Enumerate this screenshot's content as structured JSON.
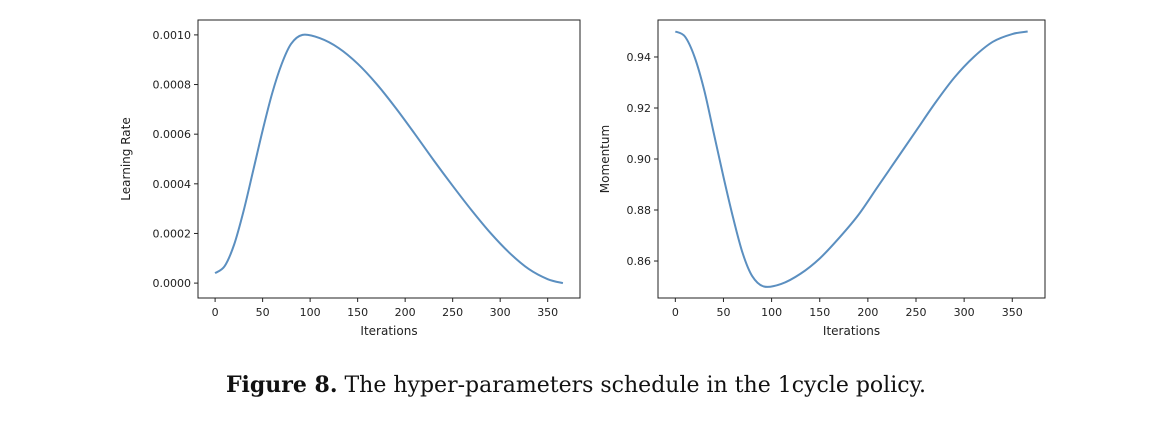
{
  "chart_data": [
    {
      "type": "line",
      "xlabel": "Iterations",
      "ylabel": "Learning Rate",
      "xlim": [
        -18,
        384
      ],
      "ylim": [
        -6e-05,
        0.00106
      ],
      "xticks": [
        0,
        50,
        100,
        150,
        200,
        250,
        300,
        350
      ],
      "yticks": [
        0.0,
        0.0002,
        0.0004,
        0.0006,
        0.0008,
        0.001
      ],
      "ytick_labels": [
        "0.0000",
        "0.0002",
        "0.0004",
        "0.0006",
        "0.0008",
        "0.0010"
      ],
      "x": [
        0,
        10,
        20,
        30,
        40,
        50,
        60,
        70,
        80,
        92,
        110,
        130,
        150,
        170,
        190,
        210,
        230,
        250,
        270,
        290,
        310,
        330,
        350,
        366
      ],
      "y": [
        4e-05,
        6.8e-05,
        0.000155,
        0.000291,
        0.000452,
        0.000615,
        0.000764,
        0.000882,
        0.000964,
        0.001,
        0.000987,
        0.000947,
        0.000884,
        0.000802,
        0.000706,
        0.000602,
        0.000495,
        0.000392,
        0.000293,
        0.000201,
        0.000121,
        5.7e-05,
        1.6e-05,
        0.0
      ],
      "color": "#5b8fc0",
      "grid": false
    },
    {
      "type": "line",
      "xlabel": "Iterations",
      "ylabel": "Momentum",
      "xlim": [
        -18,
        384
      ],
      "ylim": [
        0.8455,
        0.9545
      ],
      "xticks": [
        0,
        50,
        100,
        150,
        200,
        250,
        300,
        350
      ],
      "yticks": [
        0.86,
        0.88,
        0.9,
        0.92,
        0.94
      ],
      "ytick_labels": [
        "0.86",
        "0.88",
        "0.90",
        "0.92",
        "0.94"
      ],
      "x": [
        0,
        10,
        20,
        30,
        40,
        50,
        60,
        70,
        80,
        92,
        110,
        130,
        150,
        170,
        190,
        210,
        230,
        250,
        270,
        290,
        310,
        330,
        350,
        366
      ],
      "y": [
        0.95,
        0.948,
        0.94,
        0.927,
        0.91,
        0.893,
        0.877,
        0.863,
        0.854,
        0.85,
        0.851,
        0.855,
        0.861,
        0.869,
        0.878,
        0.889,
        0.9,
        0.911,
        0.922,
        0.932,
        0.94,
        0.946,
        0.949,
        0.95
      ],
      "color": "#5b8fc0",
      "grid": false
    }
  ],
  "caption": {
    "label": "Figure 8.",
    "text": " The hyper-parameters schedule in the 1cycle policy."
  }
}
